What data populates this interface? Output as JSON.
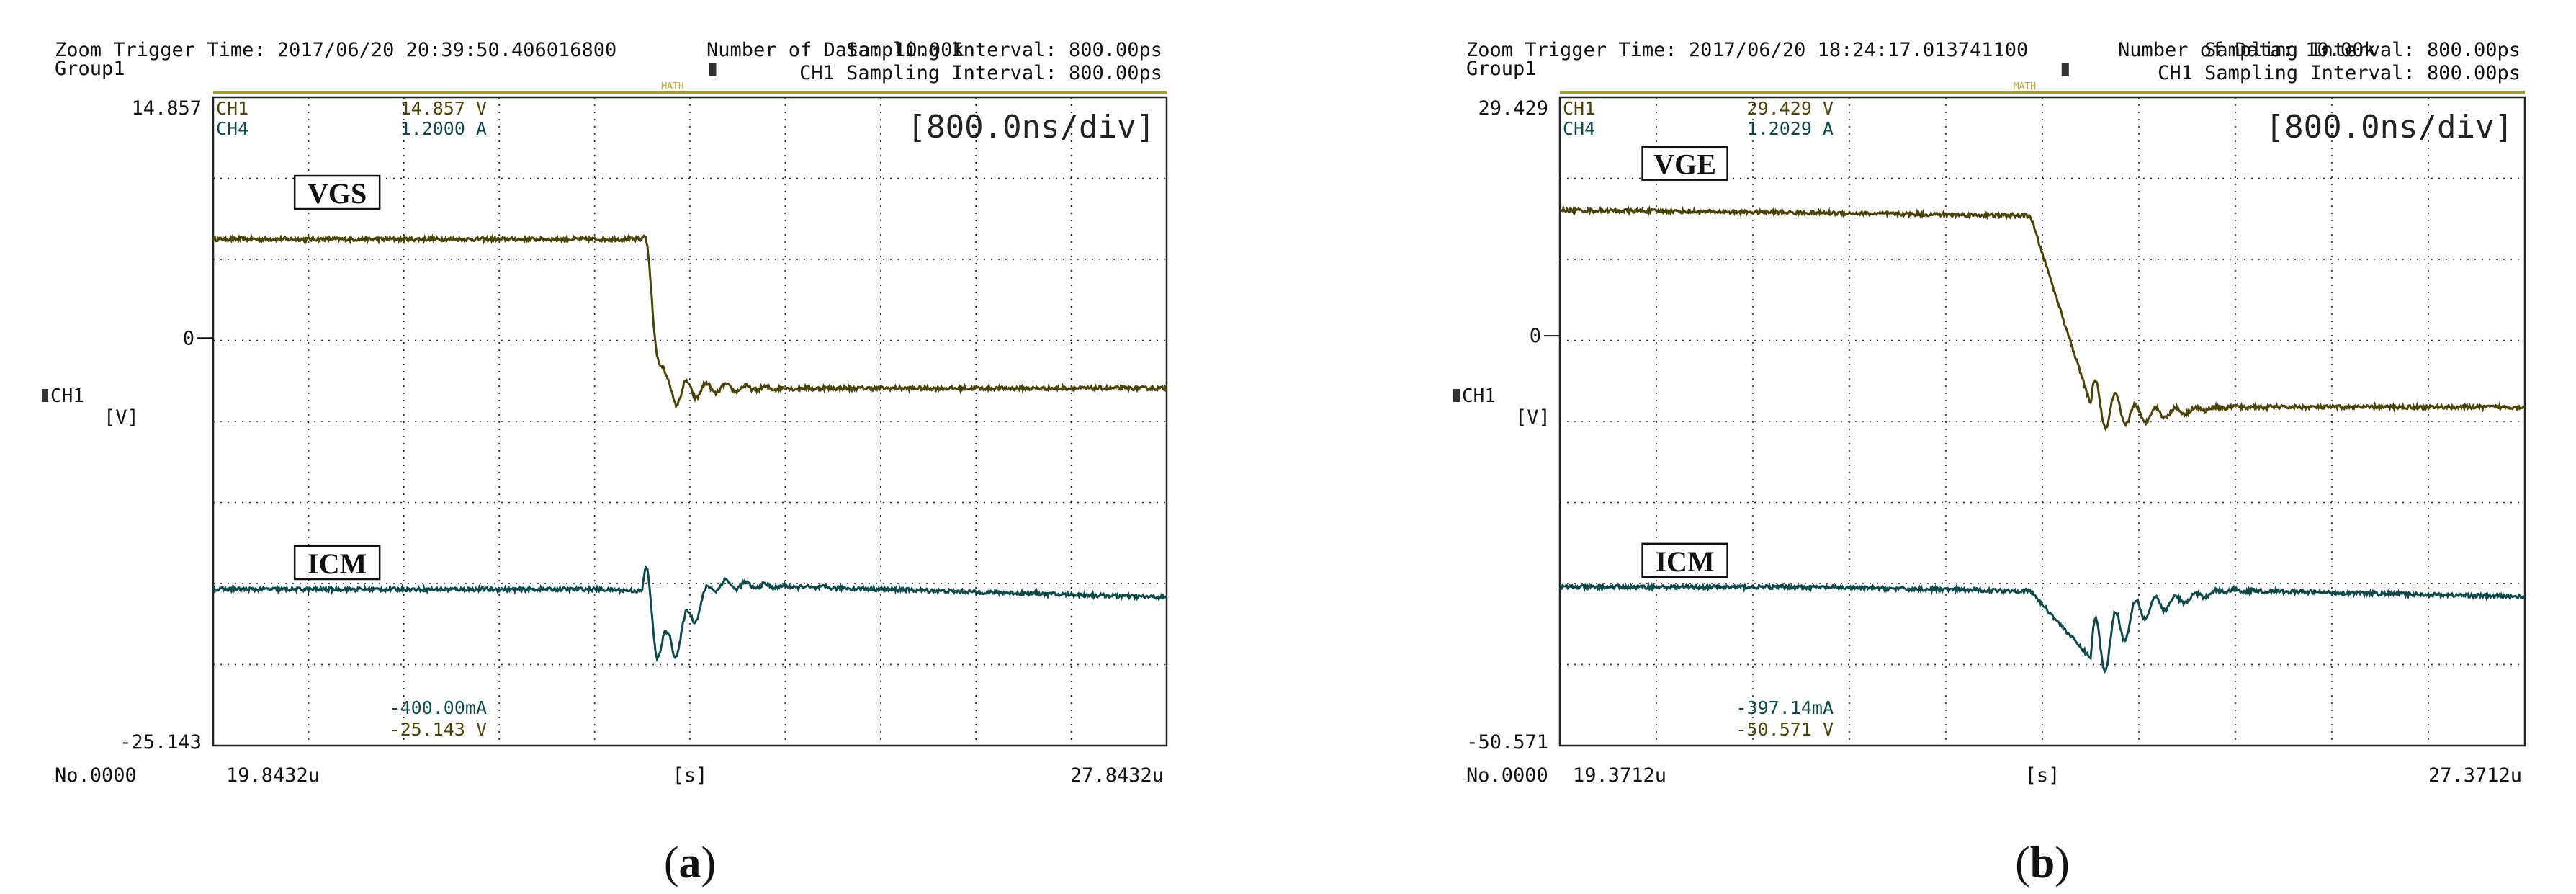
{
  "panels": [
    {
      "header_line1": "Zoom Trigger Time: 2017/06/20 20:39:50.406016800",
      "header_line1_right": "Number of Data:     10.00k",
      "header_line2_left": "Group1",
      "header_math": "MATH",
      "header_line2_right": "CH1 Sampling Interval:  800.00ps",
      "header_line1_interval": "Sampling Interval:  800.00ps",
      "timebase": "[800.0ns/div]",
      "ch1_readout": {
        "ch": "CH1",
        "value": "14.857 V"
      },
      "ch4_readout": {
        "ch": "CH4",
        "value": "1.2000 A"
      },
      "bottom_readout_1": "-400.00mA",
      "bottom_readout_2": "-25.143 V",
      "y_top": "14.857",
      "y_zero": "0",
      "y_bottom": "-25.143",
      "y_channel": "CH1",
      "y_unit": "[V]",
      "record_no": "No.0000",
      "x_start": "19.8432u",
      "x_unit": "[s]",
      "x_end": "27.8432u",
      "caption_open": "(",
      "caption_letter": "a",
      "caption_close": ")",
      "label_upper": "VGS",
      "label_lower": "ICM"
    },
    {
      "header_line1": "Zoom Trigger Time: 2017/06/20 18:24:17.013741100",
      "header_line1_right": "Number of Data:     10.00k",
      "header_line2_left": "Group1",
      "header_math": "MATH",
      "header_line2_right": "CH1 Sampling Interval:  800.00ps",
      "header_line1_interval": "Sampling Interval:  800.00ps",
      "timebase": "[800.0ns/div]",
      "ch1_readout": {
        "ch": "CH1",
        "value": "29.429 V"
      },
      "ch4_readout": {
        "ch": "CH4",
        "value": "1.2029 A"
      },
      "bottom_readout_1": "-397.14mA",
      "bottom_readout_2": "-50.571 V",
      "y_top": "29.429",
      "y_zero": "0",
      "y_bottom": "-50.571",
      "y_channel": "CH1",
      "y_unit": "[V]",
      "record_no": "No.0000",
      "x_start": "19.3712u",
      "x_unit": "[s]",
      "x_end": "27.3712u",
      "caption_open": "(",
      "caption_letter": "b",
      "caption_close": ")",
      "label_upper": "VGE",
      "label_lower": "ICM"
    }
  ],
  "colors": {
    "upper_trace": "#4a4408",
    "lower_trace": "#0f4a4a",
    "grid": "#222222",
    "frame": "#222222",
    "header_rule": "#a49a2a"
  },
  "chart_data": [
    {
      "type": "line",
      "x": [
        19.8432,
        21.4432,
        23.0432,
        23.4432,
        23.6432,
        24.0432,
        27.8432
      ],
      "xlim": [
        19.8432,
        27.8432
      ],
      "ylim": [
        -25.143,
        14.857
      ],
      "grid": true,
      "series": [
        {
          "name": "VGS",
          "values": [
            6.1,
            6.1,
            6.1,
            6.1,
            -3.4,
            -3.1,
            -3.1
          ]
        },
        {
          "name": "ICM",
          "values": [
            -15.5,
            -15.5,
            -15.5,
            -15.6,
            -19.5,
            -15.2,
            -16.0
          ]
        }
      ]
    },
    {
      "type": "line",
      "x": [
        19.3712,
        21.3712,
        23.2712,
        23.7712,
        24.1712,
        24.8712,
        27.3712
      ],
      "xlim": [
        19.3712,
        27.3712
      ],
      "ylim": [
        -50.571,
        29.429
      ],
      "grid": true,
      "series": [
        {
          "name": "VGE",
          "values": [
            15.5,
            15.2,
            14.8,
            -8.5,
            -9.8,
            -8.8,
            -8.8
          ]
        },
        {
          "name": "ICM",
          "values": [
            -31.0,
            -31.0,
            -31.5,
            -39.8,
            -33.8,
            -31.4,
            -32.2
          ]
        }
      ]
    }
  ]
}
